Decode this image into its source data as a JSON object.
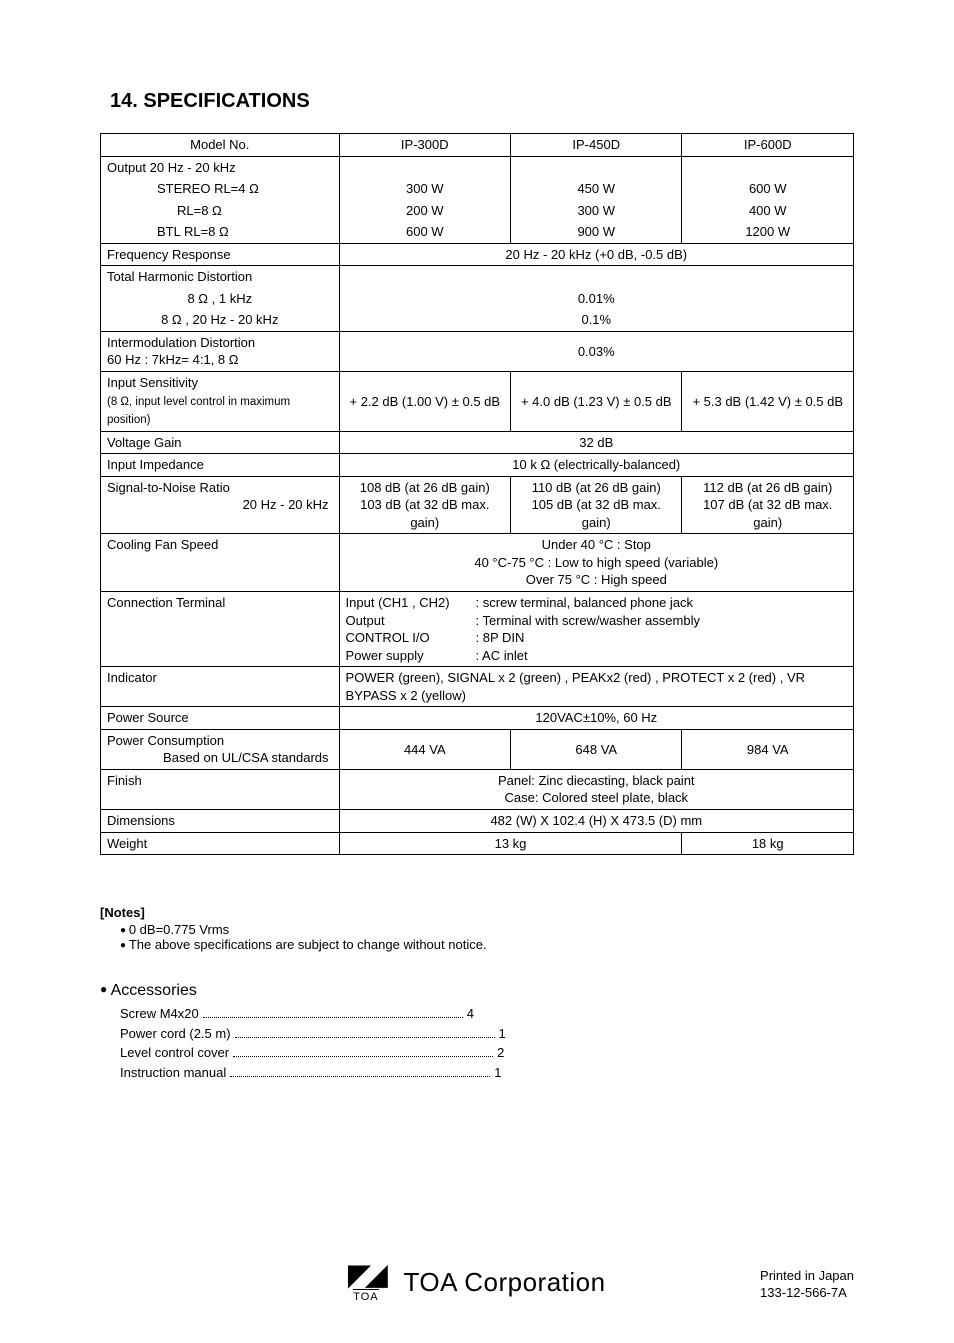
{
  "title": "14. SPECIFICATIONS",
  "header": {
    "model_label": "Model No.",
    "models": [
      "IP-300D",
      "IP-450D",
      "IP-600D"
    ]
  },
  "rows": {
    "output": {
      "title": "Output   20 Hz - 20 kHz",
      "stereo4_label": "STEREO RL=4 Ω",
      "stereo4": [
        "300 W",
        "450 W",
        "600 W"
      ],
      "rl8_label": "RL=8 Ω",
      "rl8": [
        "200 W",
        "300 W",
        "400 W"
      ],
      "btl_label": "BTL       RL=8 Ω",
      "btl": [
        "600 W",
        "900 W",
        "1200 W"
      ]
    },
    "freq_resp": {
      "label": "Frequency Response",
      "value": "20 Hz - 20 kHz  (+0 dB, -0.5 dB)"
    },
    "thd": {
      "label": "Total Harmonic Distortion",
      "sub1_label": "8 Ω , 1 kHz",
      "sub1_val": "0.01%",
      "sub2_label": "8 Ω , 20 Hz - 20 kHz",
      "sub2_val": "0.1%"
    },
    "imd": {
      "label1": "Intermodulation Distortion",
      "label2": "60 Hz : 7kHz= 4:1, 8 Ω",
      "value": "0.03%"
    },
    "input_sens": {
      "label1": "Input Sensitivity",
      "label2": "(8 Ω, input level control in maximum position)",
      "vals": [
        "+ 2.2 dB  (1.00 V)  ± 0.5 dB",
        "+ 4.0 dB  (1.23 V)  ± 0.5 dB",
        "+ 5.3 dB  (1.42 V)  ± 0.5 dB"
      ]
    },
    "voltage_gain": {
      "label": "Voltage Gain",
      "value": "32 dB"
    },
    "input_imp": {
      "label": "Input Impedance",
      "value": "10 k Ω  (electrically-balanced)"
    },
    "snr": {
      "label1": "Signal-to-Noise  Ratio",
      "label2": "20 Hz - 20 kHz",
      "r1": [
        "108 dB (at 26 dB gain)",
        "110 dB (at 26 dB gain)",
        "112 dB (at 26 dB gain)"
      ],
      "r2": [
        "103 dB (at 32 dB max. gain)",
        "105 dB (at 32 dB max. gain)",
        "107 dB (at 32 dB max. gain)"
      ]
    },
    "fan": {
      "label": "Cooling Fan Speed",
      "l1": "Under 40 °C  : Stop",
      "l2": "40 °C-75 °C   : Low to high speed (variable)",
      "l3": "Over 75 °C    : High speed"
    },
    "conn": {
      "label": "Connection Terminal",
      "k1": "Input (CH1 , CH2)",
      "v1": ": screw terminal, balanced phone jack",
      "k2": "Output",
      "v2": ": Terminal with screw/washer assembly",
      "k3": "CONTROL I/O",
      "v3": ": 8P  DIN",
      "k4": "Power supply",
      "v4": ": AC inlet"
    },
    "indicator": {
      "label": "Indicator",
      "value": "POWER  (green), SIGNAL x 2  (green)  , PEAKx2  (red)  , PROTECT x 2  (red)  , VR BYPASS x 2  (yellow)"
    },
    "power_src": {
      "label": "Power Source",
      "value": "120VAC±10%, 60 Hz"
    },
    "power_cons": {
      "label1": "Power Consumption",
      "label2": "Based on UL/CSA standards",
      "vals": [
        "444 VA",
        "648 VA",
        "984 VA"
      ]
    },
    "finish": {
      "label": "Finish",
      "l1": "Panel: Zinc diecasting, black paint",
      "l2": "Case: Colored steel plate, black"
    },
    "dims": {
      "label": "Dimensions",
      "value": "482  (W)  X 102.4  (H)  X  473.5  (D)  mm"
    },
    "weight": {
      "label": "Weight",
      "v12": "13 kg",
      "v3": "18 kg"
    }
  },
  "notes": {
    "head": "[Notes]",
    "n1": "0 dB=0.775 Vrms",
    "n2": "The above specifications are subject to change without notice."
  },
  "accessories": {
    "head": "Accessories",
    "items": [
      {
        "label": "Screw M4x20",
        "qty": "4"
      },
      {
        "label": "Power cord (2.5 m)",
        "qty": "1"
      },
      {
        "label": "Level control cover",
        "qty": "2"
      },
      {
        "label": "Instruction manual",
        "qty": "1"
      }
    ]
  },
  "footer": {
    "logo_under": "TOA",
    "corp": "TOA Corporation",
    "printed": "Printed in Japan",
    "partno": "133-12-566-7A"
  }
}
